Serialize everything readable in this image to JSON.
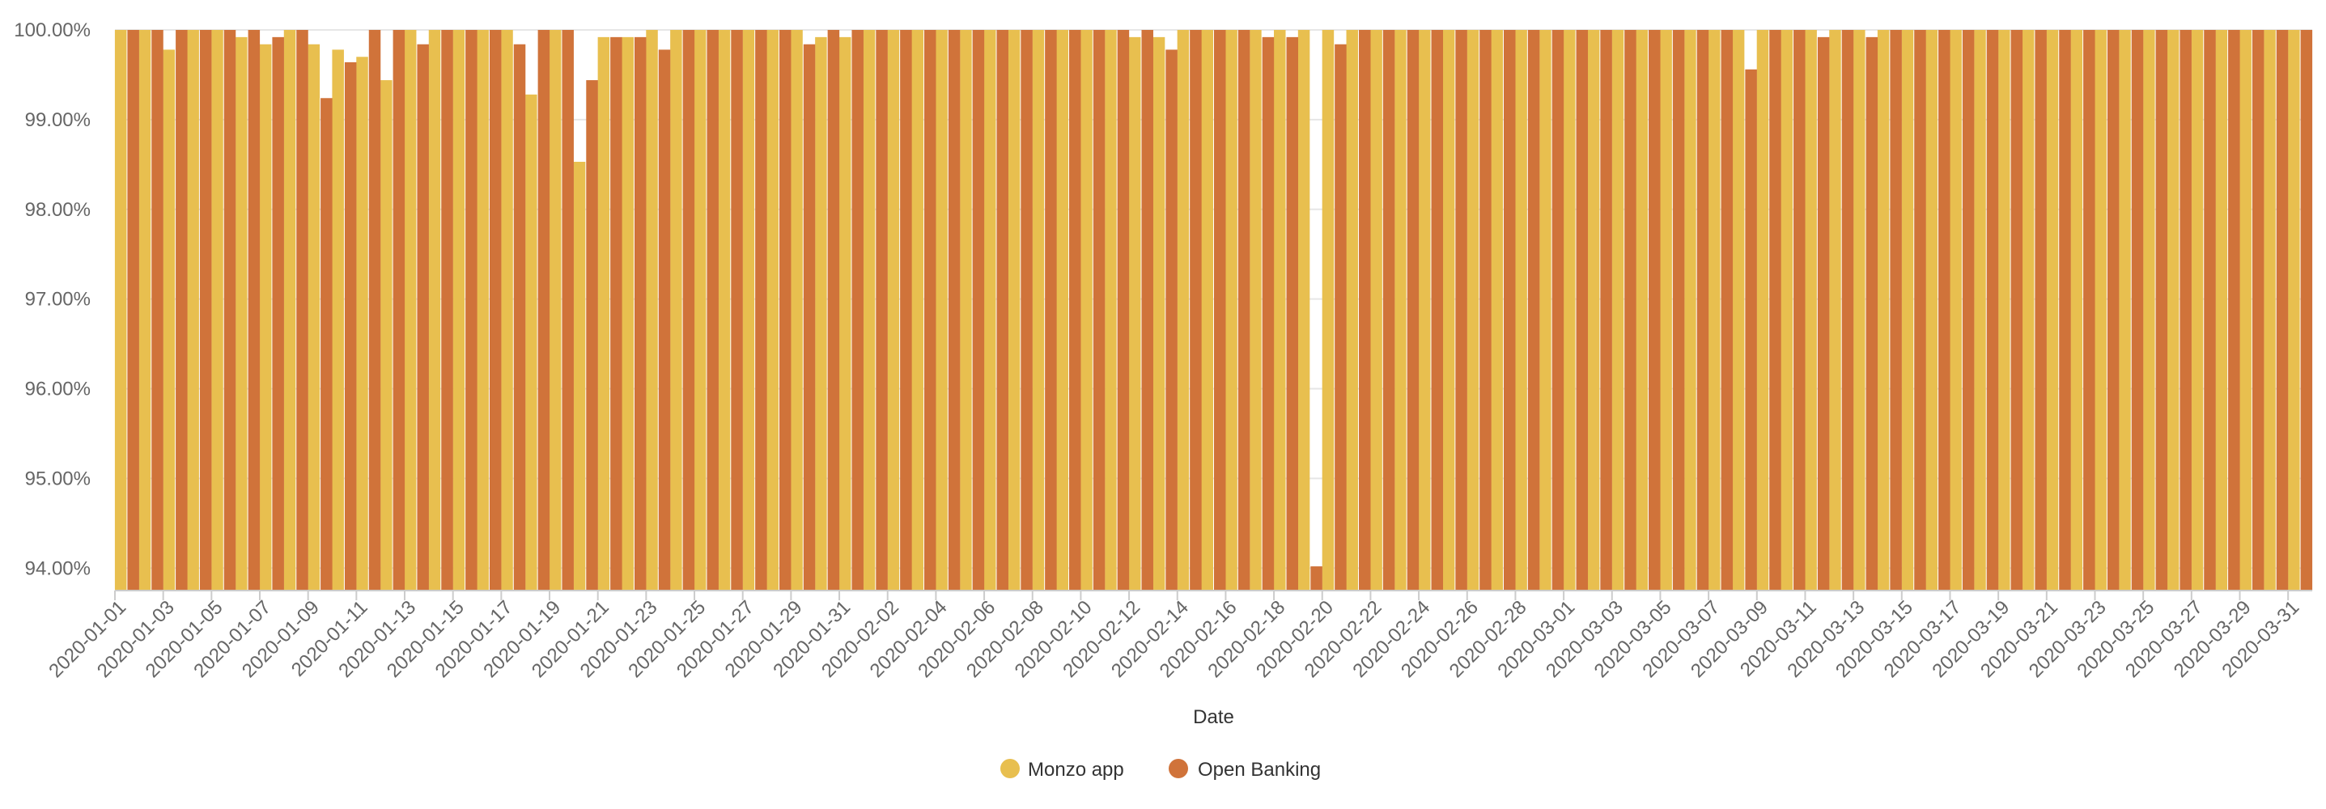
{
  "chart_data": {
    "type": "bar",
    "title": "",
    "xlabel": "Date",
    "ylabel": "",
    "ylim": [
      93.75,
      100.0
    ],
    "yticks": [
      94,
      95,
      96,
      97,
      98,
      99,
      100
    ],
    "ytick_labels": [
      "94.00%",
      "95.00%",
      "96.00%",
      "97.00%",
      "98.00%",
      "99.00%",
      "100.00%"
    ],
    "grid": "horizontal",
    "legend_position": "bottom-center",
    "categories": [
      "2020-01-01",
      "2020-01-02",
      "2020-01-03",
      "2020-01-04",
      "2020-01-05",
      "2020-01-06",
      "2020-01-07",
      "2020-01-08",
      "2020-01-09",
      "2020-01-10",
      "2020-01-11",
      "2020-01-12",
      "2020-01-13",
      "2020-01-14",
      "2020-01-15",
      "2020-01-16",
      "2020-01-17",
      "2020-01-18",
      "2020-01-19",
      "2020-01-20",
      "2020-01-21",
      "2020-01-22",
      "2020-01-23",
      "2020-01-24",
      "2020-01-25",
      "2020-01-26",
      "2020-01-27",
      "2020-01-28",
      "2020-01-29",
      "2020-01-30",
      "2020-01-31",
      "2020-02-01",
      "2020-02-02",
      "2020-02-03",
      "2020-02-04",
      "2020-02-05",
      "2020-02-06",
      "2020-02-07",
      "2020-02-08",
      "2020-02-09",
      "2020-02-10",
      "2020-02-11",
      "2020-02-12",
      "2020-02-13",
      "2020-02-14",
      "2020-02-15",
      "2020-02-16",
      "2020-02-17",
      "2020-02-18",
      "2020-02-19",
      "2020-02-20",
      "2020-02-21",
      "2020-02-22",
      "2020-02-23",
      "2020-02-24",
      "2020-02-25",
      "2020-02-26",
      "2020-02-27",
      "2020-02-28",
      "2020-02-29",
      "2020-03-01",
      "2020-03-02",
      "2020-03-03",
      "2020-03-04",
      "2020-03-05",
      "2020-03-06",
      "2020-03-07",
      "2020-03-08",
      "2020-03-09",
      "2020-03-10",
      "2020-03-11",
      "2020-03-12",
      "2020-03-13",
      "2020-03-14",
      "2020-03-15",
      "2020-03-16",
      "2020-03-17",
      "2020-03-18",
      "2020-03-19",
      "2020-03-20",
      "2020-03-21",
      "2020-03-22",
      "2020-03-23",
      "2020-03-24",
      "2020-03-25",
      "2020-03-26",
      "2020-03-27",
      "2020-03-28",
      "2020-03-29",
      "2020-03-30",
      "2020-03-31"
    ],
    "x_tick_labels": [
      "2020-01-01",
      "2020-01-03",
      "2020-01-05",
      "2020-01-07",
      "2020-01-09",
      "2020-01-11",
      "2020-01-13",
      "2020-01-15",
      "2020-01-17",
      "2020-01-19",
      "2020-01-21",
      "2020-01-23",
      "2020-01-25",
      "2020-01-27",
      "2020-01-29",
      "2020-01-31",
      "2020-02-02",
      "2020-02-04",
      "2020-02-06",
      "2020-02-08",
      "2020-02-10",
      "2020-02-12",
      "2020-02-14",
      "2020-02-16",
      "2020-02-18",
      "2020-02-20",
      "2020-02-22",
      "2020-02-24",
      "2020-02-26",
      "2020-02-28",
      "2020-03-01",
      "2020-03-03",
      "2020-03-05",
      "2020-03-07",
      "2020-03-09",
      "2020-03-11",
      "2020-03-13",
      "2020-03-15",
      "2020-03-17",
      "2020-03-19",
      "2020-03-21",
      "2020-03-23",
      "2020-03-25",
      "2020-03-27",
      "2020-03-29",
      "2020-03-31"
    ],
    "series": [
      {
        "name": "Monzo app",
        "color": "#E8BF4F",
        "values": [
          100,
          100,
          99.78,
          100,
          100,
          99.92,
          99.84,
          100,
          99.84,
          99.78,
          99.7,
          99.44,
          100,
          100,
          100,
          100,
          100,
          99.28,
          100,
          98.53,
          99.92,
          99.92,
          100,
          100,
          100,
          100,
          100,
          100,
          100,
          99.92,
          99.92,
          100,
          100,
          100,
          100,
          100,
          100,
          100,
          100,
          100,
          100,
          100,
          99.92,
          99.92,
          100,
          100,
          100,
          100,
          100,
          100,
          100,
          100,
          100,
          100,
          100,
          100,
          100,
          100,
          100,
          100,
          100,
          100,
          100,
          100,
          100,
          100,
          100,
          100,
          100,
          100,
          100,
          100,
          100,
          100,
          100,
          100,
          100,
          100,
          100,
          100,
          100,
          100,
          100,
          100,
          100,
          100,
          100,
          100,
          100,
          100,
          100
        ]
      },
      {
        "name": "Open Banking",
        "color": "#D0733A",
        "values": [
          100,
          100,
          100,
          100,
          100,
          100,
          99.92,
          100,
          99.24,
          99.64,
          100,
          100,
          99.84,
          100,
          100,
          100,
          99.84,
          100,
          100,
          99.44,
          99.92,
          99.92,
          99.78,
          100,
          100,
          100,
          100,
          100,
          99.84,
          100,
          100,
          100,
          100,
          100,
          100,
          100,
          100,
          100,
          100,
          100,
          100,
          100,
          100,
          99.78,
          100,
          100,
          100,
          99.92,
          99.92,
          94.02,
          99.84,
          100,
          100,
          100,
          100,
          100,
          100,
          100,
          100,
          100,
          100,
          100,
          100,
          100,
          100,
          100,
          100,
          99.56,
          100,
          100,
          99.92,
          100,
          99.92,
          100,
          100,
          100,
          100,
          100,
          100,
          100,
          100,
          100,
          100,
          100,
          100,
          100,
          100,
          100,
          100,
          100,
          100
        ]
      }
    ]
  }
}
